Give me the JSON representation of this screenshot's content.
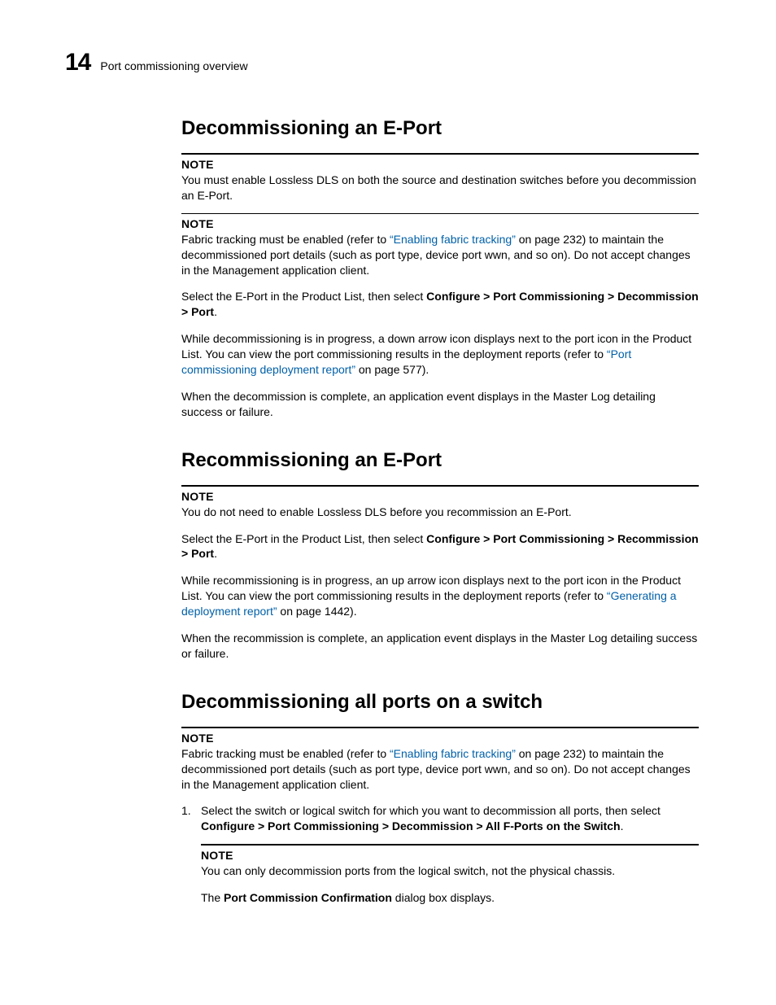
{
  "header": {
    "page_number": "14",
    "title": "Port commissioning overview"
  },
  "sections": {
    "s1": {
      "heading": "Decommissioning an E-Port",
      "note1_label": "NOTE",
      "note1_text": "You must enable Lossless DLS on both the source and destination switches before you decommission an E-Port.",
      "note2_label": "NOTE",
      "note2_pre": "Fabric tracking must be enabled (refer to ",
      "note2_link": "“Enabling fabric tracking”",
      "note2_post": " on page 232) to maintain the decommissioned port details (such as port type, device port wwn, and so on). Do not accept changes in the Management application client.",
      "p1_pre": "Select the E-Port in the Product List, then select ",
      "p1_bold": "Configure > Port Commissioning > Decommission > Port",
      "p1_post": ".",
      "p2_pre": "While decommissioning is in progress, a down arrow icon displays next to the port icon in the Product List. You can view the port commissioning results in the deployment reports (refer to ",
      "p2_link": "“Port commissioning deployment report”",
      "p2_post": " on page 577).",
      "p3": "When the decommission is complete, an application event displays in the Master Log detailing success or failure."
    },
    "s2": {
      "heading": "Recommissioning an E-Port",
      "note1_label": "NOTE",
      "note1_text": "You do not need to enable Lossless DLS before you recommission an E-Port.",
      "p1_pre": "Select the E-Port in the Product List, then select ",
      "p1_bold": "Configure > Port Commissioning > Recommission > Port",
      "p1_post": ".",
      "p2_pre": "While recommissioning is in progress, an up arrow icon displays next to the port icon in the Product List. You can view the port commissioning results in the deployment reports (refer to ",
      "p2_link": "“Generating a deployment report”",
      "p2_post": " on page 1442).",
      "p3": "When the recommission is complete, an application event displays in the Master Log detailing success or failure."
    },
    "s3": {
      "heading": "Decommissioning all ports on a switch",
      "note1_label": "NOTE",
      "note1_pre": "Fabric tracking must be enabled (refer to ",
      "note1_link": "“Enabling fabric tracking”",
      "note1_post": " on page 232) to maintain the decommissioned port details (such as port type, device port wwn, and so on). Do not accept changes in the Management application client.",
      "step1_num": "1.",
      "step1_pre": "Select the switch or logical switch for which you want to decommission all ports, then select ",
      "step1_bold": "Configure > Port Commissioning > Decommission > All F-Ports on the Switch",
      "step1_post": ".",
      "inner_note_label": "NOTE",
      "inner_note_text": "You can only decommission ports from the logical switch, not the physical chassis.",
      "p_final_pre": "The ",
      "p_final_bold": "Port Commission Confirmation",
      "p_final_post": " dialog box displays."
    }
  }
}
